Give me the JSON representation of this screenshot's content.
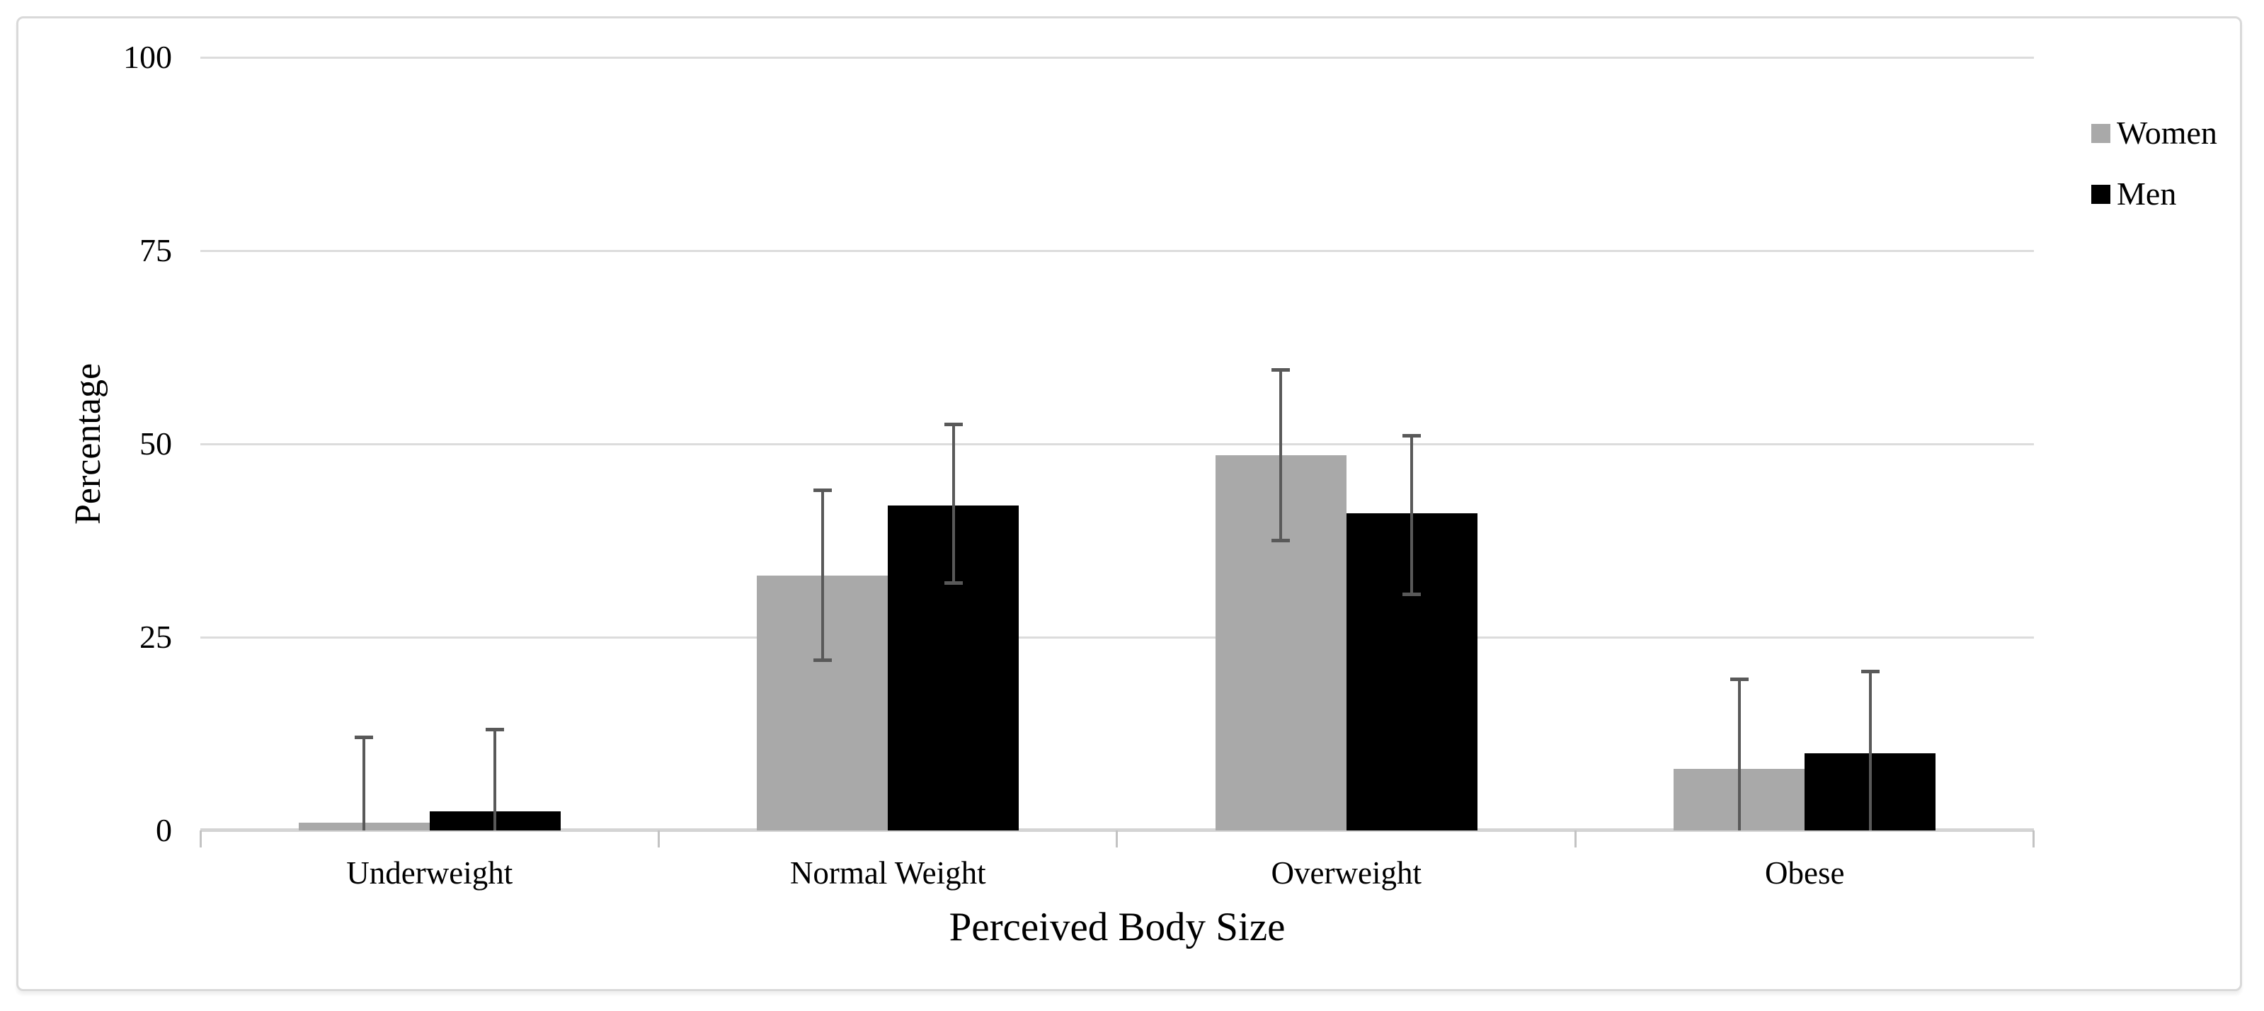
{
  "chart_data": {
    "type": "bar",
    "title": "",
    "xlabel": "Perceived Body Size",
    "ylabel": "Percentage",
    "categories": [
      "Underweight",
      "Normal Weight",
      "Overweight",
      "Obese"
    ],
    "y_ticks": [
      100,
      75,
      50,
      25,
      0
    ],
    "ylim": [
      0,
      100
    ],
    "grid": "horizontal",
    "legend_position": "top-right",
    "error_bar_color": "#595959",
    "series": [
      {
        "name": "Women",
        "color": "#a9a9a9",
        "values": [
          1,
          33,
          48.5,
          8
        ],
        "error_top": [
          12,
          44,
          59.5,
          19.5
        ],
        "error_bottom": [
          0,
          22,
          37.5,
          0
        ]
      },
      {
        "name": "Men",
        "color": "#000000",
        "values": [
          2.5,
          42,
          41,
          10
        ],
        "error_top": [
          13,
          52.5,
          51,
          20.5
        ],
        "error_bottom": [
          0,
          32,
          30.5,
          0
        ]
      }
    ]
  }
}
